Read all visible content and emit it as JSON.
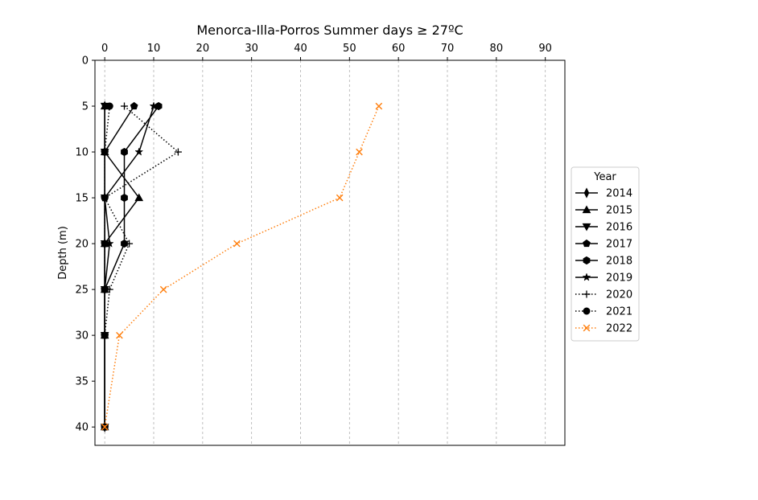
{
  "chart_data": {
    "type": "line",
    "title": "Menorca-Illa-Porros Summer days ≥ 27ºC",
    "xlabel": "",
    "ylabel": "Depth (m)",
    "x_axis_position": "top",
    "xlim": [
      -2,
      94
    ],
    "ylim": [
      42,
      0
    ],
    "x_ticks": [
      0,
      10,
      20,
      30,
      40,
      50,
      60,
      70,
      80,
      90
    ],
    "y_ticks": [
      0,
      5,
      10,
      15,
      20,
      25,
      30,
      35,
      40
    ],
    "grid": "vertical dashed",
    "legend": {
      "title": "Year",
      "placement": "right"
    },
    "series": [
      {
        "name": "2014",
        "color": "#000000",
        "linestyle": "solid",
        "marker": "thin_diamond",
        "points": [
          [
            0,
            5
          ],
          [
            0,
            10
          ],
          [
            0,
            15
          ],
          [
            0,
            20
          ],
          [
            0,
            25
          ],
          [
            0,
            30
          ],
          [
            0,
            40
          ]
        ]
      },
      {
        "name": "2015",
        "color": "#000000",
        "linestyle": "solid",
        "marker": "triangle_up",
        "points": [
          [
            0,
            5
          ],
          [
            0,
            10
          ],
          [
            7,
            15
          ],
          [
            0,
            20
          ],
          [
            0,
            25
          ],
          [
            0,
            30
          ],
          [
            0,
            40
          ]
        ]
      },
      {
        "name": "2016",
        "color": "#000000",
        "linestyle": "solid",
        "marker": "triangle_down",
        "points": [
          [
            0,
            5
          ],
          [
            0,
            10
          ],
          [
            0,
            15
          ],
          [
            0,
            20
          ],
          [
            0,
            25
          ],
          [
            0,
            30
          ],
          [
            0,
            40
          ]
        ]
      },
      {
        "name": "2017",
        "color": "#000000",
        "linestyle": "solid",
        "marker": "pentagon",
        "points": [
          [
            6,
            5
          ],
          [
            0,
            10
          ],
          [
            0,
            15
          ],
          [
            0,
            20
          ],
          [
            0,
            25
          ],
          [
            0,
            30
          ],
          [
            0,
            40
          ]
        ]
      },
      {
        "name": "2018",
        "color": "#000000",
        "linestyle": "solid",
        "marker": "hexagon",
        "points": [
          [
            11,
            5
          ],
          [
            4,
            10
          ],
          [
            4,
            15
          ],
          [
            4,
            20
          ],
          [
            0,
            25
          ],
          [
            0,
            30
          ],
          [
            0,
            40
          ]
        ]
      },
      {
        "name": "2019",
        "color": "#000000",
        "linestyle": "solid",
        "marker": "star",
        "points": [
          [
            10,
            5
          ],
          [
            7,
            10
          ],
          [
            0,
            15
          ],
          [
            1,
            20
          ],
          [
            0,
            25
          ],
          [
            0,
            30
          ],
          [
            0,
            40
          ]
        ]
      },
      {
        "name": "2020",
        "color": "#000000",
        "linestyle": "dotted",
        "marker": "plus",
        "points": [
          [
            4,
            5
          ],
          [
            15,
            10
          ],
          [
            0,
            15
          ],
          [
            5,
            20
          ],
          [
            1,
            25
          ],
          [
            0,
            30
          ],
          [
            0,
            40
          ]
        ]
      },
      {
        "name": "2021",
        "color": "#000000",
        "linestyle": "dotted",
        "marker": "circle",
        "points": [
          [
            1,
            5
          ],
          [
            0,
            10
          ],
          [
            0,
            15
          ],
          [
            0,
            20
          ],
          [
            0,
            25
          ],
          [
            0,
            30
          ],
          [
            0,
            40
          ]
        ]
      },
      {
        "name": "2022",
        "color": "#ff7f0e",
        "linestyle": "dotted",
        "marker": "x",
        "points": [
          [
            56,
            5
          ],
          [
            52,
            10
          ],
          [
            48,
            15
          ],
          [
            27,
            20
          ],
          [
            12,
            25
          ],
          [
            3,
            30
          ],
          [
            0,
            40
          ]
        ]
      }
    ]
  }
}
